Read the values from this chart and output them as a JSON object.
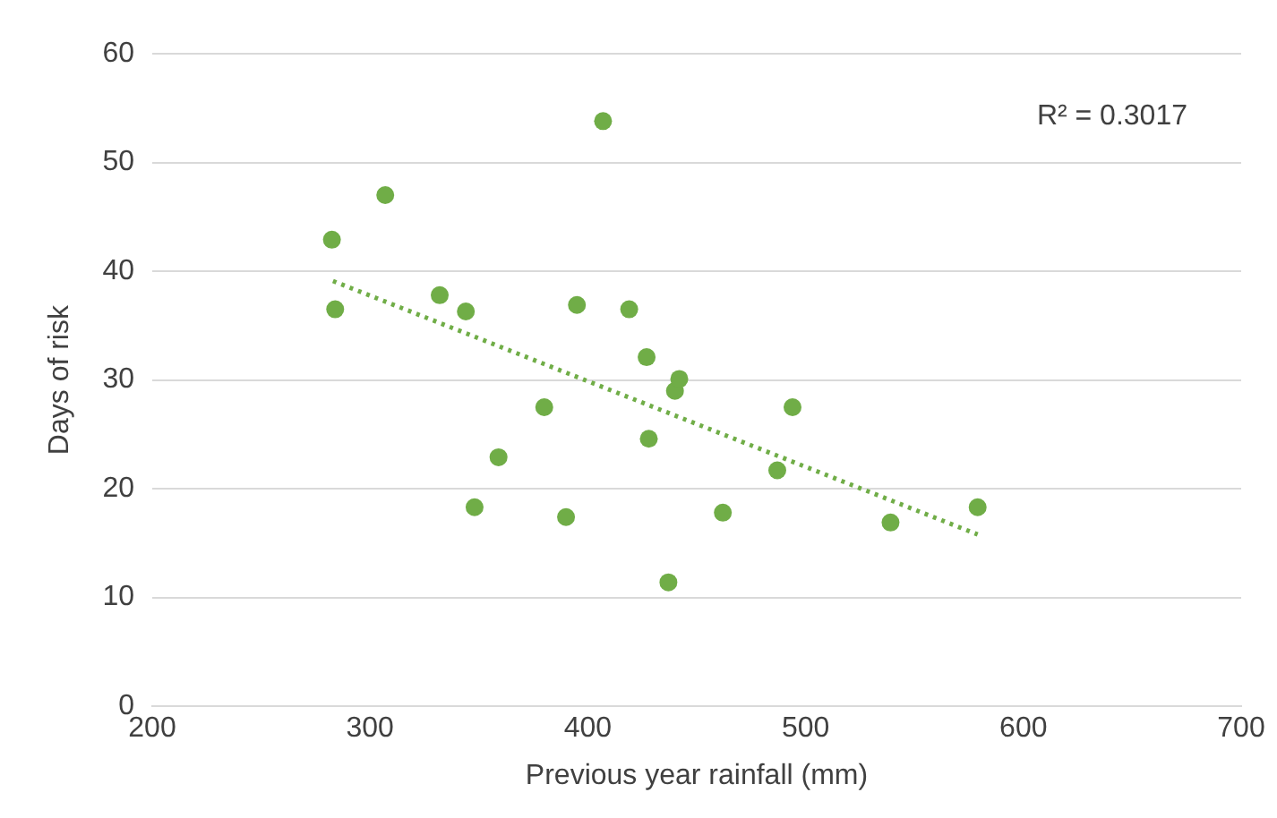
{
  "chart_data": {
    "type": "scatter",
    "xlabel": "Previous year rainfall (mm)",
    "ylabel": "Days of risk",
    "annotations": [
      "R² = 0.3017"
    ],
    "xlim": [
      200,
      700
    ],
    "xticks": [
      200,
      300,
      400,
      500,
      600,
      700
    ],
    "ylim": [
      0,
      60
    ],
    "yticks": [
      0,
      10,
      20,
      30,
      40,
      50,
      60
    ],
    "grid": "y",
    "marker": "circle",
    "legend": false,
    "series": [
      {
        "color": "#70ad47",
        "x": [
          282.5,
          284,
          307,
          332,
          344,
          348,
          359,
          380,
          390,
          395,
          407,
          419,
          427,
          428,
          437,
          440,
          442,
          462,
          487,
          494,
          539,
          579
        ],
        "values": [
          42.9,
          36.5,
          47,
          37.8,
          36.3,
          18.3,
          22.9,
          27.5,
          17.4,
          36.9,
          53.8,
          36.5,
          32.1,
          24.6,
          11.4,
          29,
          30.1,
          17.8,
          21.7,
          27.5,
          16.9,
          18.3
        ]
      },
      {
        "type": "line",
        "color": "#70ad47",
        "line_style": "dotted",
        "marker": "none",
        "x": [
          283,
          579
        ],
        "values": [
          39.1,
          15.8
        ]
      }
    ]
  }
}
